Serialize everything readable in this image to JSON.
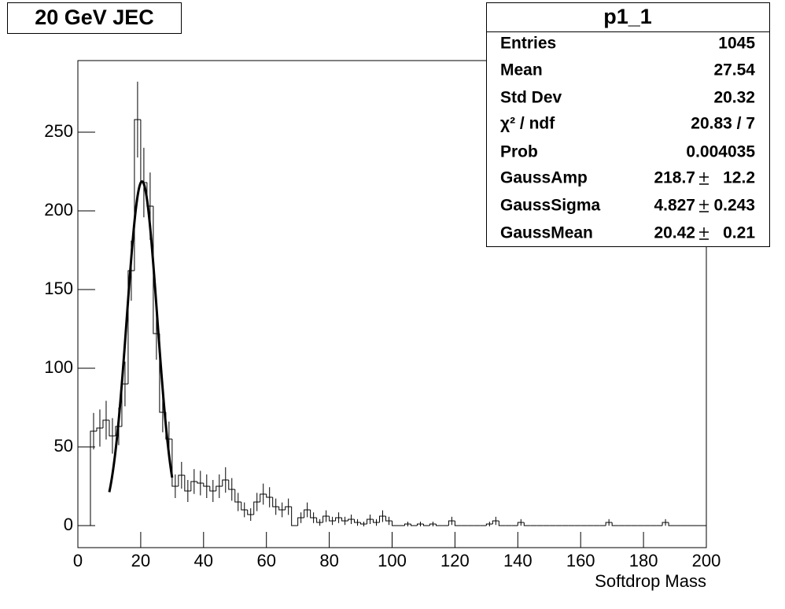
{
  "chart_data": {
    "type": "histogram",
    "title": "20 GeV JEC",
    "x_label": "Softdrop Mass",
    "bins": [
      0,
      2,
      4,
      6,
      8,
      10,
      12,
      14,
      16,
      18,
      20,
      22,
      24,
      26,
      28,
      30,
      32,
      34,
      36,
      38,
      40,
      42,
      44,
      46,
      48,
      50,
      52,
      54,
      56,
      58,
      60,
      62,
      64,
      66,
      68,
      70,
      72,
      74,
      76,
      78,
      80,
      82,
      84,
      86,
      88,
      90,
      92,
      94,
      96,
      98,
      100,
      102,
      104,
      106,
      108,
      110,
      112,
      114,
      116,
      118,
      120,
      122,
      124,
      126,
      128,
      130,
      132,
      134,
      136,
      138,
      140,
      142,
      144,
      146,
      148,
      150,
      152,
      154,
      156,
      158,
      160,
      162,
      164,
      166,
      168,
      170,
      172,
      174,
      176,
      178,
      180,
      182,
      184,
      186,
      188,
      190,
      192,
      194,
      196,
      198,
      200
    ],
    "values": [
      0,
      0,
      60,
      62,
      67,
      57,
      63,
      90,
      162,
      258,
      218,
      203,
      122,
      72,
      55,
      25,
      32,
      22,
      28,
      27,
      25,
      22,
      25,
      29,
      23,
      15,
      10,
      7,
      15,
      20,
      18,
      12,
      10,
      12,
      0,
      5,
      10,
      5,
      2,
      6,
      3,
      5,
      3,
      4,
      2,
      1,
      4,
      2,
      6,
      3,
      0,
      0,
      1,
      0,
      1,
      0,
      1,
      0,
      0,
      3,
      0,
      0,
      0,
      0,
      0,
      1,
      3,
      0,
      0,
      0,
      2,
      0,
      0,
      0,
      0,
      0,
      0,
      0,
      0,
      0,
      0,
      0,
      0,
      0,
      2,
      0,
      0,
      0,
      0,
      0,
      0,
      0,
      0,
      2,
      0,
      0,
      0,
      0,
      0,
      0
    ],
    "errors": [
      0,
      0,
      11.6,
      11.8,
      12.3,
      11.3,
      11.9,
      14.2,
      19.1,
      24.1,
      22.1,
      21.4,
      16.6,
      12.7,
      11.1,
      7.5,
      8.5,
      7.0,
      7.9,
      7.8,
      7.5,
      7.0,
      7.5,
      8.1,
      7.2,
      5.8,
      4.7,
      4.0,
      5.8,
      6.7,
      6.4,
      5.2,
      4.7,
      5.2,
      0,
      3.4,
      4.7,
      3.4,
      2.1,
      3.7,
      2.6,
      3.4,
      2.6,
      3.0,
      2.1,
      1.5,
      3.0,
      2.1,
      3.7,
      2.6,
      0,
      0,
      1.5,
      0,
      1.5,
      0,
      1.5,
      0,
      0,
      2.6,
      0,
      0,
      0,
      0,
      0,
      1.5,
      2.6,
      0,
      0,
      0,
      2.1,
      0,
      0,
      0,
      0,
      0,
      0,
      0,
      0,
      0,
      0,
      0,
      0,
      0,
      2.1,
      0,
      0,
      0,
      0,
      0,
      0,
      0,
      0,
      2.1,
      0,
      0,
      0,
      0,
      0,
      0
    ],
    "color": "#000000",
    "xlim": [
      0,
      200
    ],
    "xticks": [
      0,
      20,
      40,
      60,
      80,
      100,
      120,
      140,
      160,
      180,
      200
    ],
    "ylim": [
      -14,
      295.5
    ],
    "yticks": [
      0,
      50,
      100,
      150,
      200,
      250
    ],
    "fit_range": [
      10,
      30
    ],
    "stats": {
      "title": "p1_1",
      "rows": [
        {
          "label": "Entries",
          "value": 1045
        },
        {
          "label": "Mean",
          "value": 27.54
        },
        {
          "label": "Std Dev",
          "value": 20.32
        },
        {
          "label": "χ² / ndf",
          "value": "20.83 / 7"
        },
        {
          "label": "Prob",
          "value": 0.004035
        },
        {
          "label": "GaussAmp",
          "value": 218.7,
          "error": 12.2
        },
        {
          "label": "GaussSigma",
          "value": 4.827,
          "error": 0.243
        },
        {
          "label": "GaussMean",
          "value": 20.42,
          "error": 0.21
        }
      ]
    }
  }
}
